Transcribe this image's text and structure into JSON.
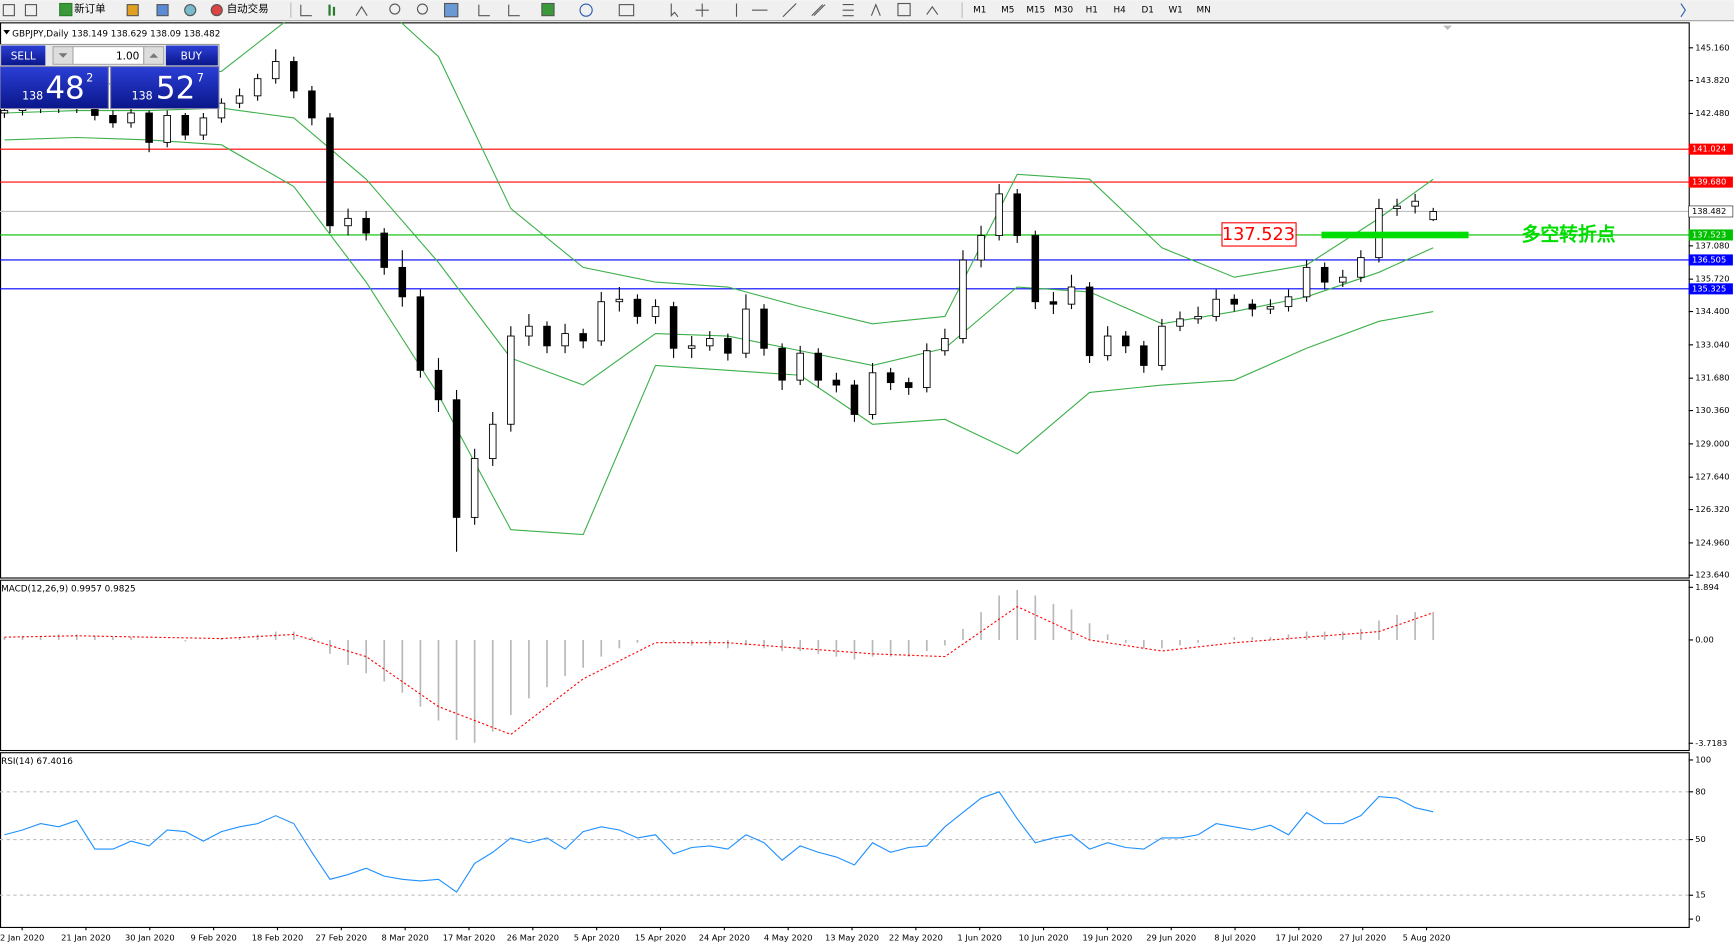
{
  "toolbar": {
    "new_order": "新订单",
    "auto_trading": "自动交易",
    "timeframes": [
      "M1",
      "M5",
      "M15",
      "M30",
      "H1",
      "H4",
      "D1",
      "W1",
      "MN"
    ]
  },
  "symbol": "GBPJPY,Daily",
  "trade_panel": {
    "sell": "SELL",
    "buy": "BUY",
    "lots": "1.00",
    "bid": {
      "figure": "138",
      "pips": "48",
      "point": "2"
    },
    "ask": {
      "figure": "138",
      "pips": "52",
      "point": "7"
    }
  },
  "chart": {
    "ylim": [
      123.55,
      146.2
    ],
    "yticks": [
      {
        "value": 145.16,
        "label": "145.160"
      },
      {
        "value": 143.82,
        "label": "143.820"
      },
      {
        "value": 142.48,
        "label": "142.480"
      },
      {
        "value": 137.08,
        "label": "137.080"
      },
      {
        "value": 135.72,
        "label": "135.720"
      },
      {
        "value": 134.4,
        "label": "134.400"
      },
      {
        "value": 133.04,
        "label": "133.040"
      },
      {
        "value": 131.68,
        "label": "131.680"
      },
      {
        "value": 130.36,
        "label": "130.360"
      },
      {
        "value": 129,
        "label": "129.000"
      },
      {
        "value": 127.64,
        "label": "127.640"
      },
      {
        "value": 126.32,
        "label": "126.320"
      },
      {
        "value": 124.96,
        "label": "124.960"
      },
      {
        "value": 123.64,
        "label": "123.640"
      }
    ],
    "levels": [
      {
        "value": 141.024,
        "color": "#ff0000"
      },
      {
        "value": 139.68,
        "label": "139.680",
        "color": "#ff0000"
      },
      {
        "value": 138.482,
        "color": "#c0c0c0"
      },
      {
        "value": 137.523,
        "color": "#00c000"
      },
      {
        "value": 136.505,
        "color": "#0000ff"
      },
      {
        "value": 135.325,
        "color": "#0000ff"
      }
    ],
    "candles": [
      [
        142.5,
        142.9,
        142.3,
        142.6
      ],
      [
        142.6,
        143.0,
        142.4,
        142.8
      ],
      [
        142.8,
        143.0,
        142.5,
        142.7
      ],
      [
        142.7,
        143.1,
        142.5,
        142.9
      ],
      [
        142.9,
        143.0,
        142.5,
        142.7
      ],
      [
        142.7,
        142.9,
        142.2,
        142.4
      ],
      [
        142.4,
        142.6,
        141.9,
        142.1
      ],
      [
        142.1,
        142.7,
        141.9,
        142.5
      ],
      [
        142.5,
        142.6,
        140.9,
        141.3
      ],
      [
        141.3,
        142.6,
        141.1,
        142.4
      ],
      [
        142.4,
        142.5,
        141.4,
        141.6
      ],
      [
        141.6,
        142.5,
        141.4,
        142.3
      ],
      [
        142.3,
        143.1,
        142.1,
        142.9
      ],
      [
        142.9,
        143.5,
        142.7,
        143.2
      ],
      [
        143.2,
        144.1,
        143.0,
        143.9
      ],
      [
        143.9,
        145.1,
        143.7,
        144.6
      ],
      [
        144.6,
        144.8,
        143.1,
        143.4
      ],
      [
        143.4,
        143.6,
        142.0,
        142.3
      ],
      [
        142.3,
        142.5,
        137.6,
        137.9
      ],
      [
        137.9,
        138.6,
        137.5,
        138.2
      ],
      [
        138.2,
        138.5,
        137.3,
        137.6
      ],
      [
        137.6,
        137.8,
        135.9,
        136.2
      ],
      [
        136.2,
        136.9,
        134.6,
        135.0
      ],
      [
        135.0,
        135.3,
        131.7,
        132.0
      ],
      [
        132.0,
        132.5,
        130.3,
        130.8
      ],
      [
        130.8,
        131.2,
        124.6,
        126.0
      ],
      [
        126.0,
        128.8,
        125.7,
        128.4
      ],
      [
        128.4,
        130.3,
        128.1,
        129.8
      ],
      [
        129.8,
        133.8,
        129.5,
        133.4
      ],
      [
        133.4,
        134.3,
        133.0,
        133.8
      ],
      [
        133.8,
        134.0,
        132.7,
        133.0
      ],
      [
        133.0,
        133.9,
        132.7,
        133.5
      ],
      [
        133.5,
        133.7,
        132.9,
        133.2
      ],
      [
        133.2,
        135.2,
        133.0,
        134.8
      ],
      [
        134.8,
        135.4,
        134.4,
        134.9
      ],
      [
        134.9,
        135.1,
        133.9,
        134.2
      ],
      [
        134.2,
        134.9,
        133.9,
        134.6
      ],
      [
        134.6,
        134.8,
        132.5,
        132.9
      ],
      [
        132.9,
        133.4,
        132.5,
        133.0
      ],
      [
        133.0,
        133.6,
        132.8,
        133.3
      ],
      [
        133.3,
        133.5,
        132.4,
        132.7
      ],
      [
        132.7,
        135.1,
        132.5,
        134.5
      ],
      [
        134.5,
        134.7,
        132.6,
        132.9
      ],
      [
        132.9,
        133.1,
        131.2,
        131.6
      ],
      [
        131.6,
        133.0,
        131.4,
        132.7
      ],
      [
        132.7,
        132.9,
        131.3,
        131.6
      ],
      [
        131.6,
        131.9,
        131.1,
        131.4
      ],
      [
        131.4,
        131.6,
        129.9,
        130.2
      ],
      [
        130.2,
        132.3,
        130.0,
        131.9
      ],
      [
        131.9,
        132.1,
        131.2,
        131.5
      ],
      [
        131.5,
        131.7,
        131.0,
        131.3
      ],
      [
        131.3,
        133.1,
        131.1,
        132.8
      ],
      [
        132.8,
        133.7,
        132.6,
        133.3
      ],
      [
        133.3,
        136.9,
        133.1,
        136.5
      ],
      [
        136.5,
        137.9,
        136.2,
        137.5
      ],
      [
        137.5,
        139.6,
        137.3,
        139.2
      ],
      [
        139.2,
        139.4,
        137.2,
        137.5
      ],
      [
        137.5,
        137.7,
        134.5,
        134.8
      ],
      [
        134.8,
        135.2,
        134.3,
        134.7
      ],
      [
        134.7,
        135.9,
        134.5,
        135.4
      ],
      [
        135.4,
        135.6,
        132.3,
        132.6
      ],
      [
        132.6,
        133.8,
        132.4,
        133.4
      ],
      [
        133.4,
        133.6,
        132.7,
        133.0
      ],
      [
        133.0,
        133.2,
        131.9,
        132.2
      ],
      [
        132.2,
        134.1,
        132.0,
        133.8
      ],
      [
        133.8,
        134.4,
        133.6,
        134.1
      ],
      [
        134.1,
        134.6,
        133.9,
        134.2
      ],
      [
        134.2,
        135.3,
        134.0,
        134.9
      ],
      [
        134.9,
        135.1,
        134.4,
        134.7
      ],
      [
        134.7,
        134.9,
        134.2,
        134.5
      ],
      [
        134.5,
        134.9,
        134.3,
        134.6
      ],
      [
        134.6,
        135.3,
        134.4,
        135.0
      ],
      [
        135.0,
        136.5,
        134.8,
        136.2
      ],
      [
        136.2,
        136.4,
        135.3,
        135.6
      ],
      [
        135.6,
        136.1,
        135.4,
        135.8
      ],
      [
        135.8,
        136.9,
        135.6,
        136.6
      ],
      [
        136.6,
        139.0,
        136.4,
        138.6
      ],
      [
        138.6,
        139.0,
        138.3,
        138.7
      ],
      [
        138.7,
        139.2,
        138.4,
        138.9
      ],
      [
        138.149,
        138.629,
        138.09,
        138.482
      ]
    ],
    "bands": {
      "color": "#3cb04a",
      "x": [
        0,
        4,
        8,
        12,
        16,
        20,
        24,
        28,
        32,
        36,
        40,
        44,
        48,
        52,
        56,
        60,
        64,
        68,
        72,
        76,
        79
      ],
      "upper": [
        143.4,
        143.6,
        143.8,
        144.2,
        146.5,
        147.5,
        144.8,
        138.6,
        136.2,
        135.6,
        135.4,
        134.6,
        133.9,
        134.2,
        140.0,
        139.8,
        137.0,
        135.8,
        136.3,
        138.2,
        139.8
      ],
      "middle": [
        142.5,
        142.6,
        142.6,
        142.7,
        142.3,
        139.8,
        136.4,
        132.5,
        131.4,
        133.5,
        133.4,
        132.8,
        132.2,
        132.9,
        135.4,
        135.2,
        133.9,
        134.4,
        135.0,
        136.0,
        137.0
      ],
      "lower": [
        141.4,
        141.5,
        141.4,
        141.2,
        139.5,
        135.6,
        131.0,
        125.5,
        125.3,
        132.2,
        132.0,
        131.8,
        129.8,
        130.0,
        128.6,
        131.1,
        131.4,
        131.6,
        132.9,
        134.0,
        134.4
      ]
    },
    "annotation": {
      "value": 137.523,
      "text": "多空转折点",
      "color": "#00dd00"
    }
  },
  "macd": {
    "title": "MACD(12,26,9)",
    "ylim": [
      -3.96,
      2.17
    ],
    "yticks": [
      1.894,
      {
        "value": 0,
        "label": "0.00"
      },
      -3.7183
    ],
    "histogram": [
      0.1,
      0.15,
      0.15,
      0.2,
      0.2,
      0.15,
      0.1,
      0.1,
      0.0,
      0.0,
      -0.05,
      0.0,
      0.05,
      0.1,
      0.2,
      0.3,
      0.3,
      0.1,
      -0.5,
      -0.9,
      -1.2,
      -1.5,
      -1.9,
      -2.4,
      -2.9,
      -3.6,
      -3.7,
      -3.3,
      -2.7,
      -2.1,
      -1.7,
      -1.3,
      -1.0,
      -0.6,
      -0.3,
      -0.1,
      0.0,
      -0.1,
      -0.2,
      -0.2,
      -0.3,
      -0.2,
      -0.3,
      -0.4,
      -0.4,
      -0.5,
      -0.6,
      -0.7,
      -0.6,
      -0.6,
      -0.6,
      -0.4,
      -0.2,
      0.4,
      1.0,
      1.6,
      1.8,
      1.6,
      1.3,
      1.1,
      0.6,
      0.2,
      -0.1,
      -0.3,
      -0.3,
      -0.2,
      -0.1,
      0.0,
      0.1,
      0.1,
      0.1,
      0.2,
      0.3,
      0.3,
      0.3,
      0.4,
      0.7,
      0.9,
      1.0,
      0.9957
    ],
    "signal_x": [
      0,
      4,
      8,
      12,
      16,
      20,
      24,
      28,
      32,
      36,
      40,
      44,
      48,
      52,
      56,
      60,
      64,
      68,
      72,
      76,
      79
    ],
    "signal": [
      0.1,
      0.15,
      0.1,
      0.05,
      0.2,
      -0.6,
      -2.4,
      -3.4,
      -1.4,
      -0.1,
      -0.1,
      -0.3,
      -0.5,
      -0.6,
      1.2,
      0.0,
      -0.4,
      -0.1,
      0.1,
      0.3,
      0.9825
    ]
  },
  "rsi": {
    "title": "RSI(14)",
    "ylim": [
      -4.9,
      104.9
    ],
    "yticks": [
      100,
      80,
      50,
      15,
      0
    ],
    "levels": [
      80,
      50,
      15
    ],
    "values": [
      53,
      56,
      60,
      58,
      62,
      44,
      44,
      49,
      46,
      56,
      55,
      49,
      55,
      58,
      60,
      65,
      60,
      42,
      25,
      28,
      32,
      27,
      25,
      24,
      25,
      17,
      35,
      42,
      51,
      48,
      51,
      44,
      55,
      58,
      56,
      51,
      53,
      41,
      45,
      46,
      44,
      53,
      48,
      37,
      46,
      42,
      39,
      34,
      48,
      42,
      45,
      46,
      58,
      67,
      76,
      80,
      63,
      48,
      51,
      53,
      44,
      48,
      45,
      44,
      51,
      51,
      53,
      60,
      58,
      56,
      59,
      53,
      67,
      60,
      60,
      65,
      77,
      76,
      70,
      67.4016
    ]
  },
  "dates": [
    "2 Jan 2020",
    "21 Jan 2020",
    "30 Jan 2020",
    "9 Feb 2020",
    "18 Feb 2020",
    "27 Feb 2020",
    "8 Mar 2020",
    "17 Mar 2020",
    "26 Mar 2020",
    "5 Apr 2020",
    "15 Apr 2020",
    "24 Apr 2020",
    "4 May 2020",
    "13 May 2020",
    "22 May 2020",
    "1 Jun 2020",
    "10 Jun 2020",
    "19 Jun 2020",
    "29 Jun 2020",
    "8 Jul 2020",
    "17 Jul 2020",
    "27 Jul 2020",
    "5 Aug 2020"
  ]
}
